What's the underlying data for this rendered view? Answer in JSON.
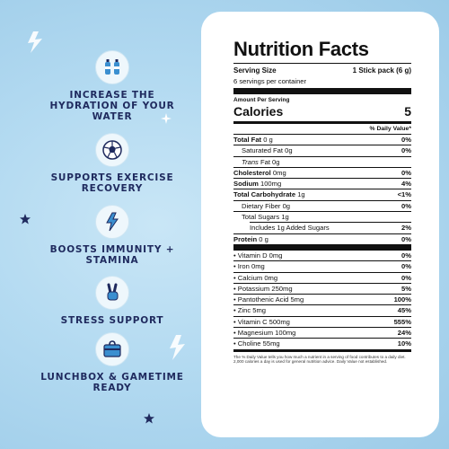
{
  "benefits": [
    {
      "icon": "water-bottles-icon",
      "text": "INCREASE THE HYDRATION OF YOUR WATER"
    },
    {
      "icon": "soccer-ball-icon",
      "text": "SUPPORTS EXERCISE RECOVERY"
    },
    {
      "icon": "lightning-bolt-icon",
      "text": "BOOSTS IMMUNITY + STAMINA"
    },
    {
      "icon": "peace-hand-icon",
      "text": "STRESS SUPPORT"
    },
    {
      "icon": "lunchbox-icon",
      "text": "LUNCHBOX & GAMETIME READY"
    }
  ],
  "colors": {
    "background": "#b3daf1",
    "accent": "#1f2a5e",
    "badge": "#eef7fc"
  },
  "label": {
    "title": "Nutrition Facts",
    "serving_size_label": "Serving Size",
    "serving_size_value": "1 Stick pack (6 g)",
    "servings": "6 servings per container",
    "amount_per_serving": "Amount Per Serving",
    "calories_label": "Calories",
    "calories_value": "5",
    "dv_header": "% Daily Value*",
    "nutrients": [
      {
        "name": "Total Fat",
        "amount": "0 g",
        "dv": "0%"
      },
      {
        "name": "Saturated Fat 0g",
        "dv": "0%"
      },
      {
        "name_italic": "Trans",
        "name_rest": " Fat 0g"
      },
      {
        "name": "Cholesterol",
        "amount": "0mg",
        "dv": "0%"
      },
      {
        "name": "Sodium",
        "amount": "100mg",
        "dv": "4%"
      },
      {
        "name": "Total Carbohydrate",
        "amount": "1g",
        "dv": "<1%"
      },
      {
        "name": "Dietary Fiber 0g",
        "dv": "0%"
      },
      {
        "name": "Total Sugars 1g"
      },
      {
        "name": "Includes 1g Added Sugars",
        "dv": "2%"
      },
      {
        "name": "Protein",
        "amount": "0 g",
        "dv": "0%"
      }
    ],
    "vitamins": [
      {
        "name": "Vitamin D 0mg",
        "dv": "0%"
      },
      {
        "name": "Iron 0mg",
        "dv": "0%"
      },
      {
        "name": "Calcium 0mg",
        "dv": "0%"
      },
      {
        "name": "Potassium 250mg",
        "dv": "5%"
      },
      {
        "name": "Pantothenic Acid 5mg",
        "dv": "100%"
      },
      {
        "name": "Zinc 5mg",
        "dv": "45%"
      },
      {
        "name": "Vitamin C 500mg",
        "dv": "555%"
      },
      {
        "name": "Magnesium 100mg",
        "dv": "24%"
      },
      {
        "name": "Choline 55mg",
        "dv": "10%"
      }
    ],
    "footnote": "The % Daily Value tells you how much a nutrient in a serving of food contributes to a daily diet. 2,000 calories a day is used for general nutrition advice. Daily Value not established."
  }
}
